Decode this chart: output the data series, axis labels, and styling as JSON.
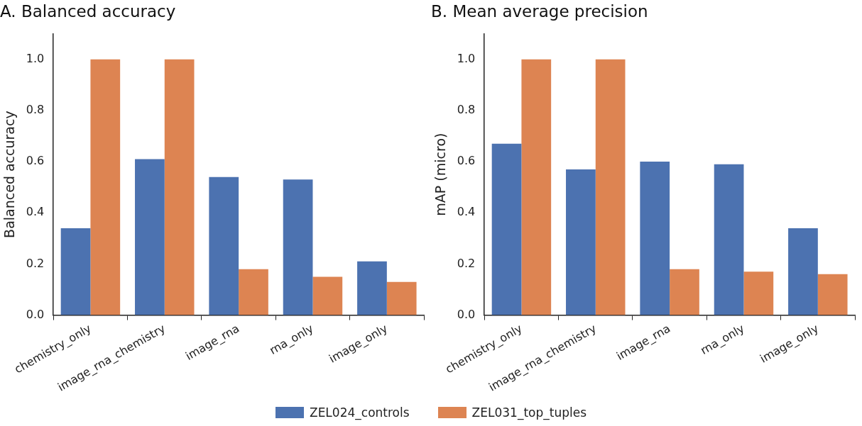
{
  "chart_data": [
    {
      "type": "bar",
      "title": "A. Balanced accuracy",
      "ylabel": "Balanced accuracy",
      "categories": [
        "chemistry_only",
        "image_rna_chemistry",
        "image_rna",
        "rna_only",
        "image_only"
      ],
      "series": [
        {
          "name": "ZEL024_controls",
          "color": "#4c72b0",
          "values": [
            0.34,
            0.61,
            0.54,
            0.53,
            0.21
          ]
        },
        {
          "name": "ZEL031_top_tuples",
          "color": "#dd8452",
          "values": [
            1.0,
            1.0,
            0.18,
            0.15,
            0.13
          ]
        }
      ],
      "ylim": [
        0,
        1.1
      ],
      "yticks": [
        {
          "value": 0,
          "label": "0.0"
        },
        {
          "value": 0.2,
          "label": "0.2"
        },
        {
          "value": 0.4,
          "label": "0.4"
        },
        {
          "value": 0.6,
          "label": "0.6"
        },
        {
          "value": 0.8,
          "label": "0.8"
        },
        {
          "value": 1,
          "label": "1.0"
        }
      ],
      "grid": false,
      "legend": "bottom"
    },
    {
      "type": "bar",
      "title": "B. Mean average precision",
      "ylabel": "mAP (micro)",
      "categories": [
        "chemistry_only",
        "image_rna_chemistry",
        "image_rna",
        "rna_only",
        "image_only"
      ],
      "series": [
        {
          "name": "ZEL024_controls",
          "color": "#4c72b0",
          "values": [
            0.67,
            0.57,
            0.6,
            0.59,
            0.34
          ]
        },
        {
          "name": "ZEL031_top_tuples",
          "color": "#dd8452",
          "values": [
            1.0,
            1.0,
            0.18,
            0.17,
            0.16
          ]
        }
      ],
      "ylim": [
        0,
        1.1
      ],
      "yticks": [
        {
          "value": 0,
          "label": "0.0"
        },
        {
          "value": 0.2,
          "label": "0.2"
        },
        {
          "value": 0.4,
          "label": "0.4"
        },
        {
          "value": 0.6,
          "label": "0.6"
        },
        {
          "value": 0.8,
          "label": "0.8"
        },
        {
          "value": 1,
          "label": "1.0"
        }
      ],
      "grid": false,
      "legend": "bottom"
    }
  ]
}
